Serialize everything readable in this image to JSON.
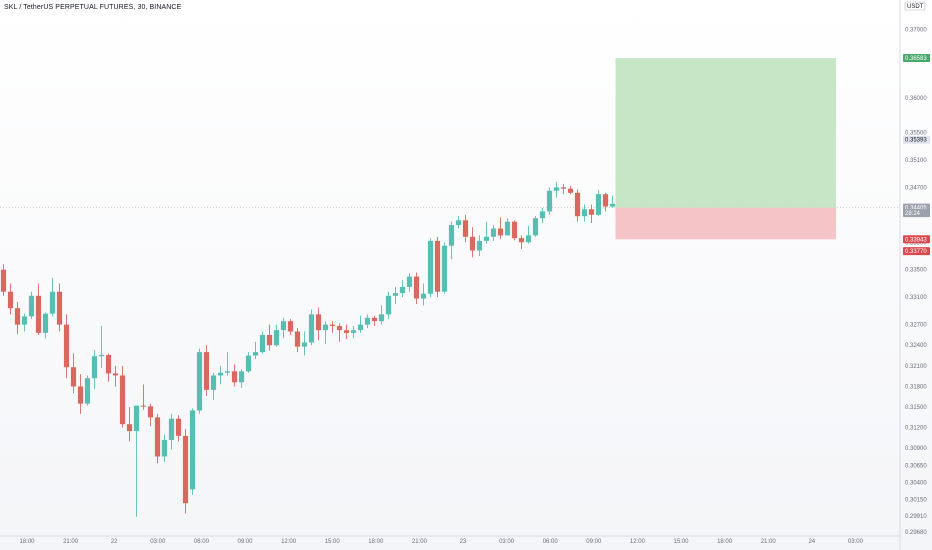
{
  "header": {
    "title": "SKL / TetherUS PERPETUAL FUTURES, 30, BINANCE"
  },
  "colors": {
    "up": "#56bfb1",
    "down": "#d9685e",
    "target_zone": "#c7e6c6",
    "stop_zone": "#f4c4c6",
    "target_tag": "#4aa96a",
    "stop_tag": "#d84a4f",
    "current_tag": "#9aa0ac"
  },
  "chart_data": {
    "type": "candlestick",
    "title": "SKL / TetherUS PERPETUAL FUTURES, 30, BINANCE",
    "currency": "USDT",
    "ylim": [
      0.2968,
      0.3737
    ],
    "y_ticks": [
      "0.37000",
      "0.36000",
      "0.35500",
      "0.35100",
      "0.34700",
      "0.34300",
      "0.33900",
      "0.33500",
      "0.33100",
      "0.32700",
      "0.32400",
      "0.32100",
      "0.31800",
      "0.31500",
      "0.31200",
      "0.30900",
      "0.30650",
      "0.30400",
      "0.30150",
      "0.29910",
      "0.29680"
    ],
    "x_ticks": [
      "18:00",
      "21:00",
      "22",
      "03:00",
      "06:00",
      "09:00",
      "12:00",
      "15:00",
      "18:00",
      "21:00",
      "23",
      "03:00",
      "06:00",
      "09:00",
      "12:00",
      "15:00",
      "18:00",
      "21:00",
      "24",
      "03:00"
    ],
    "xlim": [
      0,
      88
    ],
    "candles": [
      {
        "o": 0.335,
        "h": 0.3358,
        "l": 0.3312,
        "c": 0.3318
      },
      {
        "o": 0.3318,
        "h": 0.333,
        "l": 0.3285,
        "c": 0.3294
      },
      {
        "o": 0.3294,
        "h": 0.3303,
        "l": 0.3256,
        "c": 0.327
      },
      {
        "o": 0.327,
        "h": 0.3286,
        "l": 0.326,
        "c": 0.3282
      },
      {
        "o": 0.3282,
        "h": 0.3318,
        "l": 0.3278,
        "c": 0.3312
      },
      {
        "o": 0.3312,
        "h": 0.333,
        "l": 0.3255,
        "c": 0.3258
      },
      {
        "o": 0.3258,
        "h": 0.3288,
        "l": 0.325,
        "c": 0.3286
      },
      {
        "o": 0.3286,
        "h": 0.3338,
        "l": 0.3282,
        "c": 0.3318
      },
      {
        "o": 0.3318,
        "h": 0.333,
        "l": 0.326,
        "c": 0.327
      },
      {
        "o": 0.327,
        "h": 0.3285,
        "l": 0.3192,
        "c": 0.3208
      },
      {
        "o": 0.3208,
        "h": 0.3228,
        "l": 0.317,
        "c": 0.318
      },
      {
        "o": 0.318,
        "h": 0.3198,
        "l": 0.314,
        "c": 0.3155
      },
      {
        "o": 0.3155,
        "h": 0.3196,
        "l": 0.3152,
        "c": 0.3192
      },
      {
        "o": 0.3192,
        "h": 0.3233,
        "l": 0.3176,
        "c": 0.3224
      },
      {
        "o": 0.3224,
        "h": 0.3268,
        "l": 0.3207,
        "c": 0.3226
      },
      {
        "o": 0.3226,
        "h": 0.3228,
        "l": 0.3187,
        "c": 0.3199
      },
      {
        "o": 0.3199,
        "h": 0.321,
        "l": 0.318,
        "c": 0.3196
      },
      {
        "o": 0.3196,
        "h": 0.321,
        "l": 0.312,
        "c": 0.3125
      },
      {
        "o": 0.3125,
        "h": 0.315,
        "l": 0.31,
        "c": 0.3115
      },
      {
        "o": 0.3115,
        "h": 0.3152,
        "l": 0.299,
        "c": 0.3152
      },
      {
        "o": 0.3152,
        "h": 0.3183,
        "l": 0.3146,
        "c": 0.3151
      },
      {
        "o": 0.3151,
        "h": 0.3155,
        "l": 0.3122,
        "c": 0.3135
      },
      {
        "o": 0.3135,
        "h": 0.314,
        "l": 0.3068,
        "c": 0.3078
      },
      {
        "o": 0.3078,
        "h": 0.311,
        "l": 0.307,
        "c": 0.3102
      },
      {
        "o": 0.3102,
        "h": 0.314,
        "l": 0.3088,
        "c": 0.3133
      },
      {
        "o": 0.3133,
        "h": 0.3138,
        "l": 0.31,
        "c": 0.3108
      },
      {
        "o": 0.3108,
        "h": 0.3118,
        "l": 0.2995,
        "c": 0.301
      },
      {
        "o": 0.303,
        "h": 0.3148,
        "l": 0.3022,
        "c": 0.3145
      },
      {
        "o": 0.3145,
        "h": 0.3235,
        "l": 0.314,
        "c": 0.323
      },
      {
        "o": 0.323,
        "h": 0.324,
        "l": 0.3166,
        "c": 0.3175
      },
      {
        "o": 0.3175,
        "h": 0.32,
        "l": 0.316,
        "c": 0.3196
      },
      {
        "o": 0.3196,
        "h": 0.321,
        "l": 0.3183,
        "c": 0.32
      },
      {
        "o": 0.32,
        "h": 0.323,
        "l": 0.3196,
        "c": 0.3202
      },
      {
        "o": 0.3202,
        "h": 0.3212,
        "l": 0.318,
        "c": 0.3186
      },
      {
        "o": 0.3186,
        "h": 0.3205,
        "l": 0.3178,
        "c": 0.3202
      },
      {
        "o": 0.3202,
        "h": 0.323,
        "l": 0.32,
        "c": 0.3225
      },
      {
        "o": 0.3225,
        "h": 0.3245,
        "l": 0.322,
        "c": 0.323
      },
      {
        "o": 0.323,
        "h": 0.326,
        "l": 0.3228,
        "c": 0.3255
      },
      {
        "o": 0.3255,
        "h": 0.327,
        "l": 0.3232,
        "c": 0.324
      },
      {
        "o": 0.324,
        "h": 0.327,
        "l": 0.3238,
        "c": 0.3262
      },
      {
        "o": 0.3262,
        "h": 0.328,
        "l": 0.325,
        "c": 0.3275
      },
      {
        "o": 0.3275,
        "h": 0.3278,
        "l": 0.3255,
        "c": 0.326
      },
      {
        "o": 0.326,
        "h": 0.3265,
        "l": 0.323,
        "c": 0.3238
      },
      {
        "o": 0.3238,
        "h": 0.326,
        "l": 0.3225,
        "c": 0.3244
      },
      {
        "o": 0.3244,
        "h": 0.3292,
        "l": 0.324,
        "c": 0.3285
      },
      {
        "o": 0.3285,
        "h": 0.3295,
        "l": 0.3247,
        "c": 0.3262
      },
      {
        "o": 0.3262,
        "h": 0.3275,
        "l": 0.3242,
        "c": 0.327
      },
      {
        "o": 0.327,
        "h": 0.3275,
        "l": 0.3258,
        "c": 0.3268
      },
      {
        "o": 0.3268,
        "h": 0.3272,
        "l": 0.3245,
        "c": 0.3262
      },
      {
        "o": 0.3262,
        "h": 0.327,
        "l": 0.3249,
        "c": 0.3258
      },
      {
        "o": 0.3258,
        "h": 0.3268,
        "l": 0.325,
        "c": 0.3262
      },
      {
        "o": 0.3262,
        "h": 0.3283,
        "l": 0.3258,
        "c": 0.327
      },
      {
        "o": 0.327,
        "h": 0.3285,
        "l": 0.3265,
        "c": 0.328
      },
      {
        "o": 0.328,
        "h": 0.3283,
        "l": 0.3268,
        "c": 0.3275
      },
      {
        "o": 0.3275,
        "h": 0.3298,
        "l": 0.327,
        "c": 0.3285
      },
      {
        "o": 0.3285,
        "h": 0.3318,
        "l": 0.3278,
        "c": 0.3312
      },
      {
        "o": 0.3312,
        "h": 0.3325,
        "l": 0.33,
        "c": 0.3316
      },
      {
        "o": 0.3316,
        "h": 0.3335,
        "l": 0.331,
        "c": 0.3325
      },
      {
        "o": 0.3325,
        "h": 0.3345,
        "l": 0.3318,
        "c": 0.334
      },
      {
        "o": 0.334,
        "h": 0.3346,
        "l": 0.33,
        "c": 0.3308
      },
      {
        "o": 0.3308,
        "h": 0.333,
        "l": 0.3298,
        "c": 0.3315
      },
      {
        "o": 0.3315,
        "h": 0.3396,
        "l": 0.331,
        "c": 0.3392
      },
      {
        "o": 0.3392,
        "h": 0.3398,
        "l": 0.331,
        "c": 0.3318
      },
      {
        "o": 0.3318,
        "h": 0.339,
        "l": 0.3315,
        "c": 0.3385
      },
      {
        "o": 0.3385,
        "h": 0.342,
        "l": 0.3365,
        "c": 0.3415
      },
      {
        "o": 0.3415,
        "h": 0.3428,
        "l": 0.341,
        "c": 0.3422
      },
      {
        "o": 0.3422,
        "h": 0.343,
        "l": 0.339,
        "c": 0.3398
      },
      {
        "o": 0.3398,
        "h": 0.3412,
        "l": 0.3368,
        "c": 0.3378
      },
      {
        "o": 0.3378,
        "h": 0.34,
        "l": 0.337,
        "c": 0.3392
      },
      {
        "o": 0.3392,
        "h": 0.342,
        "l": 0.3388,
        "c": 0.3398
      },
      {
        "o": 0.3398,
        "h": 0.3415,
        "l": 0.3392,
        "c": 0.341
      },
      {
        "o": 0.341,
        "h": 0.3426,
        "l": 0.3395,
        "c": 0.34
      },
      {
        "o": 0.34,
        "h": 0.3425,
        "l": 0.34,
        "c": 0.342
      },
      {
        "o": 0.342,
        "h": 0.3422,
        "l": 0.3393,
        "c": 0.3396
      },
      {
        "o": 0.3396,
        "h": 0.34,
        "l": 0.338,
        "c": 0.339
      },
      {
        "o": 0.339,
        "h": 0.3414,
        "l": 0.3388,
        "c": 0.34
      },
      {
        "o": 0.34,
        "h": 0.3428,
        "l": 0.3398,
        "c": 0.3425
      },
      {
        "o": 0.3425,
        "h": 0.344,
        "l": 0.3418,
        "c": 0.3435
      },
      {
        "o": 0.3435,
        "h": 0.347,
        "l": 0.343,
        "c": 0.3465
      },
      {
        "o": 0.3465,
        "h": 0.3478,
        "l": 0.3455,
        "c": 0.347
      },
      {
        "o": 0.347,
        "h": 0.3475,
        "l": 0.346,
        "c": 0.3468
      },
      {
        "o": 0.3468,
        "h": 0.3472,
        "l": 0.346,
        "c": 0.3462
      },
      {
        "o": 0.3462,
        "h": 0.3467,
        "l": 0.342,
        "c": 0.3428
      },
      {
        "o": 0.3428,
        "h": 0.3445,
        "l": 0.342,
        "c": 0.3438
      },
      {
        "o": 0.3438,
        "h": 0.3445,
        "l": 0.3418,
        "c": 0.343
      },
      {
        "o": 0.343,
        "h": 0.3466,
        "l": 0.3428,
        "c": 0.346
      },
      {
        "o": 0.346,
        "h": 0.3462,
        "l": 0.3435,
        "c": 0.3442
      },
      {
        "o": 0.3442,
        "h": 0.3458,
        "l": 0.344,
        "c": 0.3446
      }
    ],
    "position": {
      "type": "long",
      "entry": 0.34405,
      "target": 0.36583,
      "stop": 0.33943
    },
    "price_tags": [
      {
        "label": "USDT",
        "kind": "currency"
      },
      {
        "label": "0.36583",
        "kind": "target",
        "value": 0.36583
      },
      {
        "label": "0.35393",
        "kind": "level",
        "value": 0.35393
      },
      {
        "label": "0.34407",
        "kind": "level",
        "value": 0.34407
      },
      {
        "label": "0.34405",
        "kind": "current",
        "value": 0.34405
      },
      {
        "label": "28:24",
        "kind": "countdown",
        "value": 0.34325
      },
      {
        "label": "0.33943",
        "kind": "stop",
        "value": 0.33943
      },
      {
        "label": "0.33770",
        "kind": "stop",
        "value": 0.3377
      }
    ]
  }
}
